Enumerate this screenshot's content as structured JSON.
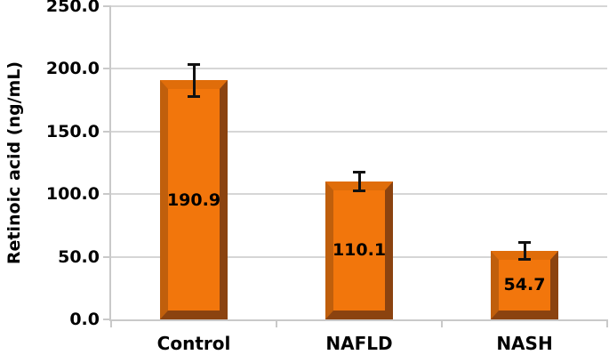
{
  "chart_data": {
    "type": "bar",
    "title": "",
    "ylabel": "Retinoic acid (ng/mL)",
    "xlabel": "",
    "categories": [
      "Control",
      "NAFLD",
      "NASH"
    ],
    "values": [
      190.9,
      110.1,
      54.7
    ],
    "value_labels": [
      "190.9",
      "110.1",
      "54.7"
    ],
    "errors": [
      13.0,
      7.5,
      7.0
    ],
    "ylim": [
      0,
      250
    ],
    "ytick_step": 50,
    "ytick_labels": [
      "0.0",
      "50.0",
      "100.0",
      "150.0",
      "200.0",
      "250.0"
    ],
    "grid": true,
    "legend": false,
    "colors": {
      "bar_face": "#F2760C",
      "bar_bevel_top": "#E06D0A",
      "bar_bevel_left": "#C05F0C",
      "bar_bevel_right": "#8B4310",
      "bar_bevel_bottom": "#8B4310",
      "gridline": "#D6D6D6",
      "axis": "#C9C9C9",
      "error_bar": "#111111",
      "text": "#000000",
      "background": "#FFFFFF"
    }
  }
}
